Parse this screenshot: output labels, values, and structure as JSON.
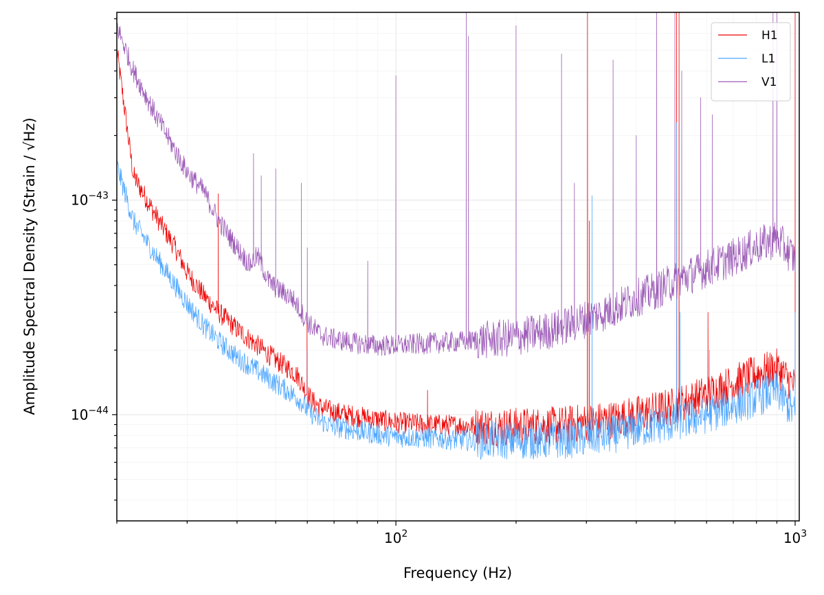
{
  "chart_data": {
    "type": "line",
    "x_scale": "log",
    "y_scale": "log",
    "xlabel": "Frequency (Hz)",
    "ylabel": "Amplitude Spectral Density (Strain / √Hz)",
    "xlim": [
      20,
      1024
    ],
    "ylim": [
      3.2e-45,
      7.5e-43
    ],
    "x_tick_labels": [
      {
        "value": 100,
        "base": "10",
        "exp": "2"
      },
      {
        "value": 1000,
        "base": "10",
        "exp": "3"
      }
    ],
    "y_tick_labels": [
      {
        "value": 1e-44,
        "base": "10",
        "exp": "−44"
      },
      {
        "value": 1e-43,
        "base": "10",
        "exp": "−43"
      }
    ],
    "grid": true,
    "legend_placement": "top-right",
    "series": [
      {
        "name": "H1",
        "color": "#ee0000",
        "x": [
          20,
          22,
          25,
          28,
          30,
          33,
          36,
          40,
          45,
          50,
          55,
          57,
          60,
          62,
          65,
          70,
          80,
          90,
          100,
          120,
          150,
          180,
          200,
          250,
          300,
          350,
          400,
          500,
          600,
          700,
          800,
          900,
          1000
        ],
        "y": [
          5e-43,
          1.3e-43,
          8.5e-44,
          6e-44,
          4.6e-44,
          3.6e-44,
          3e-44,
          2.5e-44,
          2.1e-44,
          1.8e-44,
          1.6e-44,
          1.5e-44,
          1.25e-44,
          1.15e-44,
          1.08e-44,
          1.03e-44,
          9.8e-45,
          9.5e-45,
          9.2e-45,
          9e-45,
          8.9e-45,
          8.8e-45,
          8.8e-45,
          8.9e-45,
          9.2e-45,
          9.5e-45,
          1e-44,
          1.1e-44,
          1.25e-44,
          1.4e-44,
          1.55e-44,
          1.65e-44,
          1.35e-44
        ],
        "spikes": [
          {
            "x": 35.9,
            "y": 1.07e-43
          },
          {
            "x": 59.9,
            "y": 2.8e-44
          },
          {
            "x": 120,
            "y": 1.3e-44
          },
          {
            "x": 302,
            "y": 7.5e-43
          },
          {
            "x": 305,
            "y": 8e-44
          },
          {
            "x": 505,
            "y": 7.5e-43
          },
          {
            "x": 512,
            "y": 7.5e-43
          },
          {
            "x": 605,
            "y": 3e-44
          },
          {
            "x": 1000,
            "y": 7.5e-43
          }
        ]
      },
      {
        "name": "L1",
        "color": "#4da6ff",
        "x": [
          20,
          22,
          25,
          28,
          30,
          33,
          36,
          40,
          45,
          50,
          55,
          58,
          60,
          65,
          70,
          80,
          90,
          100,
          120,
          150,
          180,
          200,
          250,
          300,
          350,
          400,
          500,
          600,
          700,
          800,
          900,
          1000
        ],
        "y": [
          1.45e-43,
          8e-44,
          5.5e-44,
          4e-44,
          3.3e-44,
          2.6e-44,
          2.2e-44,
          1.85e-44,
          1.6e-44,
          1.4e-44,
          1.25e-44,
          1.15e-44,
          1.05e-44,
          9.3e-45,
          8.8e-45,
          8.4e-45,
          8.1e-45,
          7.9e-45,
          7.8e-45,
          7.6e-45,
          7.6e-45,
          7.6e-45,
          7.6e-45,
          7.8e-45,
          8.1e-45,
          8.6e-45,
          9.2e-45,
          1e-44,
          1.1e-44,
          1.2e-44,
          1.3e-44,
          1e-44
        ],
        "spikes": [
          {
            "x": 60,
            "y": 2e-44
          },
          {
            "x": 310,
            "y": 1.05e-43
          },
          {
            "x": 505,
            "y": 2.3e-43
          },
          {
            "x": 515,
            "y": 3e-44
          },
          {
            "x": 610,
            "y": 2e-44
          },
          {
            "x": 1000,
            "y": 3e-44
          }
        ]
      },
      {
        "name": "V1",
        "color": "#9b59b6",
        "x": [
          20,
          22,
          25,
          28,
          30,
          33,
          36,
          40,
          43,
          45,
          48,
          50,
          55,
          58,
          60,
          65,
          70,
          80,
          90,
          100,
          120,
          150,
          180,
          200,
          250,
          300,
          350,
          400,
          450,
          500,
          600,
          700,
          800,
          900,
          1000
        ],
        "y": [
          6.5e-43,
          4e-43,
          2.5e-43,
          1.7e-43,
          1.35e-43,
          1.1e-43,
          8e-44,
          6e-44,
          5e-44,
          5.5e-44,
          4.2e-44,
          3.9e-44,
          3.5e-44,
          3e-44,
          2.7e-44,
          2.35e-44,
          2.25e-44,
          2.15e-44,
          2.1e-44,
          2.1e-44,
          2.15e-44,
          2.2e-44,
          2.25e-44,
          2.3e-44,
          2.5e-44,
          2.8e-44,
          3.1e-44,
          3.5e-44,
          3.8e-44,
          4.2e-44,
          4.8e-44,
          5.4e-44,
          6.1e-44,
          6.6e-44,
          5.3e-44
        ],
        "spikes": [
          {
            "x": 44,
            "y": 1.65e-43
          },
          {
            "x": 46,
            "y": 1.3e-43
          },
          {
            "x": 50,
            "y": 1.4e-43
          },
          {
            "x": 58,
            "y": 1.2e-43
          },
          {
            "x": 60,
            "y": 6e-44
          },
          {
            "x": 85,
            "y": 5.2e-44
          },
          {
            "x": 100,
            "y": 3.8e-43
          },
          {
            "x": 150,
            "y": 7.5e-43
          },
          {
            "x": 152,
            "y": 5.8e-43
          },
          {
            "x": 200,
            "y": 6.5e-43
          },
          {
            "x": 260,
            "y": 4.8e-43
          },
          {
            "x": 280,
            "y": 1.2e-43
          },
          {
            "x": 350,
            "y": 4.5e-43
          },
          {
            "x": 400,
            "y": 2e-43
          },
          {
            "x": 450,
            "y": 7.5e-43
          },
          {
            "x": 500,
            "y": 7.5e-43
          },
          {
            "x": 520,
            "y": 4e-43
          },
          {
            "x": 580,
            "y": 3e-43
          },
          {
            "x": 620,
            "y": 2.5e-43
          },
          {
            "x": 880,
            "y": 7.5e-43
          },
          {
            "x": 900,
            "y": 7.5e-43
          }
        ]
      }
    ]
  }
}
